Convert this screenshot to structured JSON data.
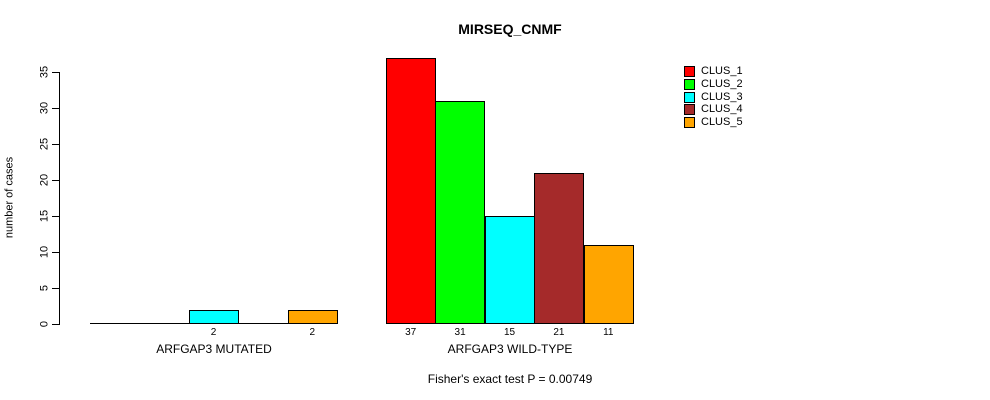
{
  "chart_data": {
    "type": "bar",
    "title": "MIRSEQ_CNMF",
    "xlabel": "",
    "ylabel": "number of cases",
    "annotation": "Fisher's exact test P = 0.00749",
    "categories": [
      "ARFGAP3 MUTATED",
      "ARFGAP3 WILD-TYPE"
    ],
    "series": [
      {
        "name": "CLUS_1",
        "color": "#FF0000",
        "values": [
          0,
          37
        ]
      },
      {
        "name": "CLUS_2",
        "color": "#00FF00",
        "values": [
          0,
          31
        ]
      },
      {
        "name": "CLUS_3",
        "color": "#00FFFF",
        "values": [
          2,
          15
        ]
      },
      {
        "name": "CLUS_4",
        "color": "#A52A2A",
        "values": [
          0,
          21
        ]
      },
      {
        "name": "CLUS_5",
        "color": "#FFA500",
        "values": [
          2,
          11
        ]
      }
    ],
    "bar_value_labels": [
      [
        "",
        "",
        "2",
        "",
        "2"
      ],
      [
        "37",
        "31",
        "15",
        "21",
        "11"
      ]
    ],
    "yticks": [
      0,
      5,
      10,
      15,
      20,
      25,
      30,
      35
    ],
    "ylim": [
      0,
      37
    ],
    "grid": false,
    "legend_position": "top-right",
    "bar_border_color": "#000000",
    "axis_color": "#000000"
  }
}
